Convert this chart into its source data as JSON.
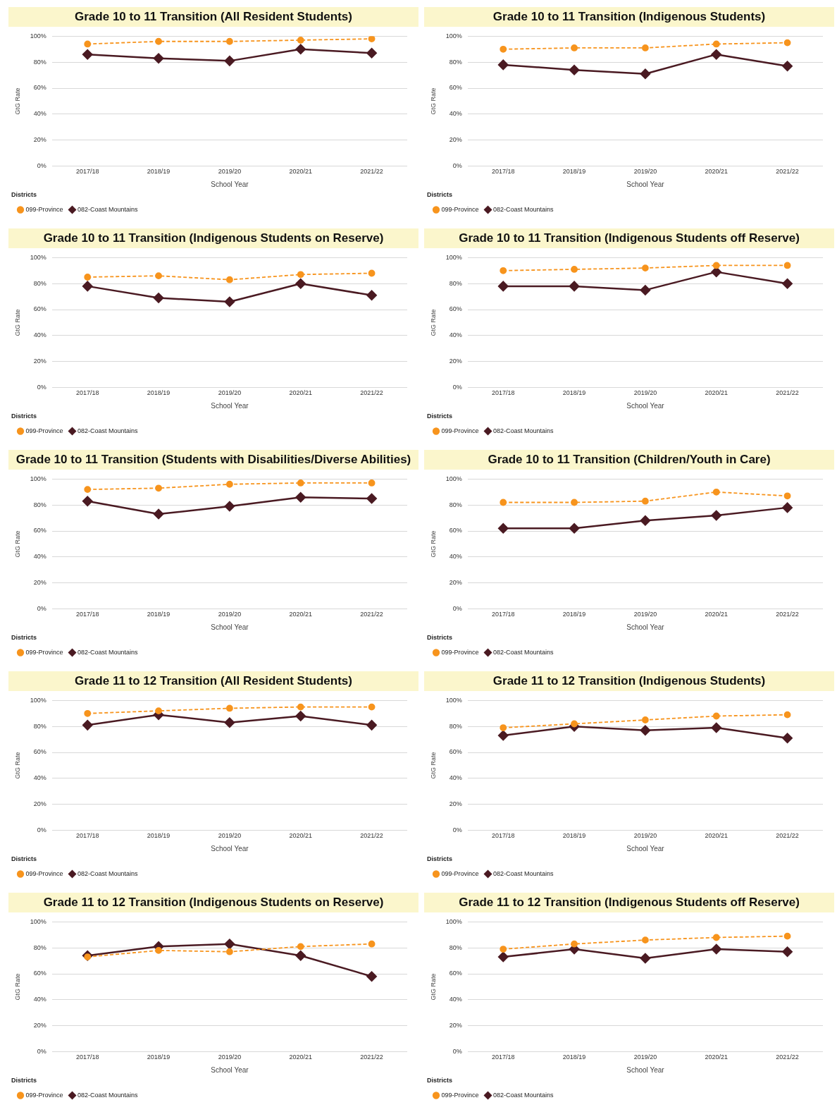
{
  "chart_data": [
    {
      "type": "line",
      "title": "Grade 10 to 11 Transition (All Resident Students)",
      "xlabel": "School Year",
      "ylabel": "GtG Rate",
      "legend_title": "Districts",
      "legend": "bottom left",
      "grid": "y",
      "categories": [
        "2017/18",
        "2018/19",
        "2019/20",
        "2020/21",
        "2021/22"
      ],
      "ylim": [
        0,
        100
      ],
      "yticks": [
        {
          "value": 0,
          "label": "0%"
        },
        {
          "value": 20,
          "label": "20%"
        },
        {
          "value": 40,
          "label": "40%"
        },
        {
          "value": 60,
          "label": "60%"
        },
        {
          "value": 80,
          "label": "80%"
        },
        {
          "value": 100,
          "label": "100%"
        }
      ],
      "series": [
        {
          "name": "082-Coast Mountains",
          "color": "#4a1a22",
          "marker": "diamond",
          "line_style": "solid",
          "values": [
            86,
            83,
            81,
            90,
            87
          ]
        },
        {
          "name": "099-Province",
          "color": "#f7941d",
          "marker": "circle",
          "line_style": "dashed",
          "values": [
            94,
            96,
            96,
            97,
            98
          ]
        }
      ]
    },
    {
      "type": "line",
      "title": "Grade 10 to 11 Transition (Indigenous Students)",
      "xlabel": "School Year",
      "ylabel": "GtG Rate",
      "legend_title": "Districts",
      "legend": "bottom left",
      "grid": "y",
      "categories": [
        "2017/18",
        "2018/19",
        "2019/20",
        "2020/21",
        "2021/22"
      ],
      "ylim": [
        0,
        100
      ],
      "yticks": [
        {
          "value": 0,
          "label": "0%"
        },
        {
          "value": 20,
          "label": "20%"
        },
        {
          "value": 40,
          "label": "40%"
        },
        {
          "value": 60,
          "label": "60%"
        },
        {
          "value": 80,
          "label": "80%"
        },
        {
          "value": 100,
          "label": "100%"
        }
      ],
      "series": [
        {
          "name": "082-Coast Mountains",
          "color": "#4a1a22",
          "marker": "diamond",
          "line_style": "solid",
          "values": [
            78,
            74,
            71,
            86,
            77
          ]
        },
        {
          "name": "099-Province",
          "color": "#f7941d",
          "marker": "circle",
          "line_style": "dashed",
          "values": [
            90,
            91,
            91,
            94,
            95
          ]
        }
      ]
    },
    {
      "type": "line",
      "title": "Grade 10 to 11 Transition (Indigenous Students on Reserve)",
      "xlabel": "School Year",
      "ylabel": "GtG Rate",
      "legend_title": "Districts",
      "legend": "bottom left",
      "grid": "y",
      "categories": [
        "2017/18",
        "2018/19",
        "2019/20",
        "2020/21",
        "2021/22"
      ],
      "ylim": [
        0,
        100
      ],
      "yticks": [
        {
          "value": 0,
          "label": "0%"
        },
        {
          "value": 20,
          "label": "20%"
        },
        {
          "value": 40,
          "label": "40%"
        },
        {
          "value": 60,
          "label": "60%"
        },
        {
          "value": 80,
          "label": "80%"
        },
        {
          "value": 100,
          "label": "100%"
        }
      ],
      "series": [
        {
          "name": "082-Coast Mountains",
          "color": "#4a1a22",
          "marker": "diamond",
          "line_style": "solid",
          "values": [
            78,
            69,
            66,
            80,
            71
          ]
        },
        {
          "name": "099-Province",
          "color": "#f7941d",
          "marker": "circle",
          "line_style": "dashed",
          "values": [
            85,
            86,
            83,
            87,
            88
          ]
        }
      ]
    },
    {
      "type": "line",
      "title": "Grade 10 to 11 Transition (Indigenous Students off Reserve)",
      "xlabel": "School Year",
      "ylabel": "GtG Rate",
      "legend_title": "Districts",
      "legend": "bottom left",
      "grid": "y",
      "categories": [
        "2017/18",
        "2018/19",
        "2019/20",
        "2020/21",
        "2021/22"
      ],
      "ylim": [
        0,
        100
      ],
      "yticks": [
        {
          "value": 0,
          "label": "0%"
        },
        {
          "value": 20,
          "label": "20%"
        },
        {
          "value": 40,
          "label": "40%"
        },
        {
          "value": 60,
          "label": "60%"
        },
        {
          "value": 80,
          "label": "80%"
        },
        {
          "value": 100,
          "label": "100%"
        }
      ],
      "series": [
        {
          "name": "082-Coast Mountains",
          "color": "#4a1a22",
          "marker": "diamond",
          "line_style": "solid",
          "values": [
            78,
            78,
            75,
            89,
            80
          ]
        },
        {
          "name": "099-Province",
          "color": "#f7941d",
          "marker": "circle",
          "line_style": "dashed",
          "values": [
            90,
            91,
            92,
            94,
            94
          ]
        }
      ]
    },
    {
      "type": "line",
      "title": "Grade 10 to 11 Transition (Students with Disabilities/Diverse Abilities)",
      "xlabel": "School Year",
      "ylabel": "GtG Rate",
      "legend_title": "Districts",
      "legend": "bottom left",
      "grid": "y",
      "categories": [
        "2017/18",
        "2018/19",
        "2019/20",
        "2020/21",
        "2021/22"
      ],
      "ylim": [
        0,
        100
      ],
      "yticks": [
        {
          "value": 0,
          "label": "0%"
        },
        {
          "value": 20,
          "label": "20%"
        },
        {
          "value": 40,
          "label": "40%"
        },
        {
          "value": 60,
          "label": "60%"
        },
        {
          "value": 80,
          "label": "80%"
        },
        {
          "value": 100,
          "label": "100%"
        }
      ],
      "series": [
        {
          "name": "082-Coast Mountains",
          "color": "#4a1a22",
          "marker": "diamond",
          "line_style": "solid",
          "values": [
            83,
            73,
            79,
            86,
            85
          ]
        },
        {
          "name": "099-Province",
          "color": "#f7941d",
          "marker": "circle",
          "line_style": "dashed",
          "values": [
            92,
            93,
            96,
            97,
            97
          ]
        }
      ]
    },
    {
      "type": "line",
      "title": "Grade 10 to 11 Transition (Children/Youth in Care)",
      "xlabel": "School Year",
      "ylabel": "GtG Rate",
      "legend_title": "Districts",
      "legend": "bottom left",
      "grid": "y",
      "categories": [
        "2017/18",
        "2018/19",
        "2019/20",
        "2020/21",
        "2021/22"
      ],
      "ylim": [
        0,
        100
      ],
      "yticks": [
        {
          "value": 0,
          "label": "0%"
        },
        {
          "value": 20,
          "label": "20%"
        },
        {
          "value": 40,
          "label": "40%"
        },
        {
          "value": 60,
          "label": "60%"
        },
        {
          "value": 80,
          "label": "80%"
        },
        {
          "value": 100,
          "label": "100%"
        }
      ],
      "series": [
        {
          "name": "082-Coast Mountains",
          "color": "#4a1a22",
          "marker": "diamond",
          "line_style": "solid",
          "values": [
            62,
            62,
            68,
            72,
            78
          ]
        },
        {
          "name": "099-Province",
          "color": "#f7941d",
          "marker": "circle",
          "line_style": "dashed",
          "values": [
            82,
            82,
            83,
            90,
            87
          ]
        }
      ]
    },
    {
      "type": "line",
      "title": "Grade 11 to 12 Transition (All Resident Students)",
      "xlabel": "School Year",
      "ylabel": "GtG Rate",
      "legend_title": "Districts",
      "legend": "bottom left",
      "grid": "y",
      "categories": [
        "2017/18",
        "2018/19",
        "2019/20",
        "2020/21",
        "2021/22"
      ],
      "ylim": [
        0,
        100
      ],
      "yticks": [
        {
          "value": 0,
          "label": "0%"
        },
        {
          "value": 20,
          "label": "20%"
        },
        {
          "value": 40,
          "label": "40%"
        },
        {
          "value": 60,
          "label": "60%"
        },
        {
          "value": 80,
          "label": "80%"
        },
        {
          "value": 100,
          "label": "100%"
        }
      ],
      "series": [
        {
          "name": "082-Coast Mountains",
          "color": "#4a1a22",
          "marker": "diamond",
          "line_style": "solid",
          "values": [
            81,
            89,
            83,
            88,
            81
          ]
        },
        {
          "name": "099-Province",
          "color": "#f7941d",
          "marker": "circle",
          "line_style": "dashed",
          "values": [
            90,
            92,
            94,
            95,
            95
          ]
        }
      ]
    },
    {
      "type": "line",
      "title": "Grade 11 to 12 Transition (Indigenous Students)",
      "xlabel": "School Year",
      "ylabel": "GtG Rate",
      "legend_title": "Districts",
      "legend": "bottom left",
      "grid": "y",
      "categories": [
        "2017/18",
        "2018/19",
        "2019/20",
        "2020/21",
        "2021/22"
      ],
      "ylim": [
        0,
        100
      ],
      "yticks": [
        {
          "value": 0,
          "label": "0%"
        },
        {
          "value": 20,
          "label": "20%"
        },
        {
          "value": 40,
          "label": "40%"
        },
        {
          "value": 60,
          "label": "60%"
        },
        {
          "value": 80,
          "label": "80%"
        },
        {
          "value": 100,
          "label": "100%"
        }
      ],
      "series": [
        {
          "name": "082-Coast Mountains",
          "color": "#4a1a22",
          "marker": "diamond",
          "line_style": "solid",
          "values": [
            73,
            80,
            77,
            79,
            71
          ]
        },
        {
          "name": "099-Province",
          "color": "#f7941d",
          "marker": "circle",
          "line_style": "dashed",
          "values": [
            79,
            82,
            85,
            88,
            89
          ]
        }
      ]
    },
    {
      "type": "line",
      "title": "Grade 11 to 12 Transition (Indigenous Students on Reserve)",
      "xlabel": "School Year",
      "ylabel": "GtG Rate",
      "legend_title": "Districts",
      "legend": "bottom left",
      "grid": "y",
      "categories": [
        "2017/18",
        "2018/19",
        "2019/20",
        "2020/21",
        "2021/22"
      ],
      "ylim": [
        0,
        100
      ],
      "yticks": [
        {
          "value": 0,
          "label": "0%"
        },
        {
          "value": 20,
          "label": "20%"
        },
        {
          "value": 40,
          "label": "40%"
        },
        {
          "value": 60,
          "label": "60%"
        },
        {
          "value": 80,
          "label": "80%"
        },
        {
          "value": 100,
          "label": "100%"
        }
      ],
      "series": [
        {
          "name": "082-Coast Mountains",
          "color": "#4a1a22",
          "marker": "diamond",
          "line_style": "solid",
          "values": [
            74,
            81,
            83,
            74,
            58
          ]
        },
        {
          "name": "099-Province",
          "color": "#f7941d",
          "marker": "circle",
          "line_style": "dashed",
          "values": [
            73,
            78,
            77,
            81,
            83
          ]
        }
      ]
    },
    {
      "type": "line",
      "title": "Grade 11 to 12 Transition (Indigenous Students off Reserve)",
      "xlabel": "School Year",
      "ylabel": "GtG Rate",
      "legend_title": "Districts",
      "legend": "bottom left",
      "grid": "y",
      "categories": [
        "2017/18",
        "2018/19",
        "2019/20",
        "2020/21",
        "2021/22"
      ],
      "ylim": [
        0,
        100
      ],
      "yticks": [
        {
          "value": 0,
          "label": "0%"
        },
        {
          "value": 20,
          "label": "20%"
        },
        {
          "value": 40,
          "label": "40%"
        },
        {
          "value": 60,
          "label": "60%"
        },
        {
          "value": 80,
          "label": "80%"
        },
        {
          "value": 100,
          "label": "100%"
        }
      ],
      "series": [
        {
          "name": "082-Coast Mountains",
          "color": "#4a1a22",
          "marker": "diamond",
          "line_style": "solid",
          "values": [
            73,
            79,
            72,
            79,
            77
          ]
        },
        {
          "name": "099-Province",
          "color": "#f7941d",
          "marker": "circle",
          "line_style": "dashed",
          "values": [
            79,
            83,
            86,
            88,
            89
          ]
        }
      ]
    }
  ]
}
